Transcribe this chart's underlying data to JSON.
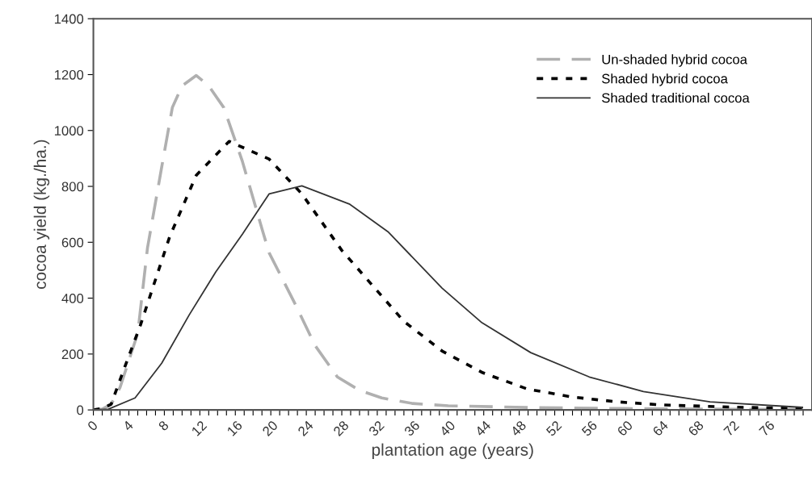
{
  "chart_data": {
    "type": "line",
    "xlabel": "plantation age (years)",
    "ylabel": "cocoa yield (kg./ha.)",
    "xlim": [
      0,
      81
    ],
    "ylim": [
      0,
      1400
    ],
    "yticks": [
      0,
      200,
      400,
      600,
      800,
      1000,
      1200,
      1400
    ],
    "xticks": [
      0,
      {
        "value": 1,
        "label": null
      },
      {
        "value": 2,
        "label": null
      },
      {
        "value": 3,
        "label": null
      },
      4,
      {
        "value": 5,
        "label": null
      },
      {
        "value": 6,
        "label": null
      },
      {
        "value": 7,
        "label": null
      },
      8,
      {
        "value": 9,
        "label": null
      },
      {
        "value": 10,
        "label": null
      },
      {
        "value": 11,
        "label": null
      },
      12,
      {
        "value": 13,
        "label": null
      },
      {
        "value": 14,
        "label": null
      },
      {
        "value": 15,
        "label": null
      },
      16,
      {
        "value": 17,
        "label": null
      },
      {
        "value": 18,
        "label": null
      },
      {
        "value": 19,
        "label": null
      },
      20,
      {
        "value": 21,
        "label": null
      },
      {
        "value": 22,
        "label": null
      },
      {
        "value": 23,
        "label": null
      },
      24,
      {
        "value": 25,
        "label": null
      },
      {
        "value": 26,
        "label": null
      },
      {
        "value": 27,
        "label": null
      },
      28,
      {
        "value": 29,
        "label": null
      },
      {
        "value": 30,
        "label": null
      },
      {
        "value": 31,
        "label": null
      },
      32,
      {
        "value": 33,
        "label": null
      },
      {
        "value": 34,
        "label": null
      },
      {
        "value": 35,
        "label": null
      },
      36,
      {
        "value": 37,
        "label": null
      },
      {
        "value": 38,
        "label": null
      },
      {
        "value": 39,
        "label": null
      },
      40,
      {
        "value": 41,
        "label": null
      },
      {
        "value": 42,
        "label": null
      },
      {
        "value": 43,
        "label": null
      },
      44,
      {
        "value": 45,
        "label": null
      },
      {
        "value": 46,
        "label": null
      },
      {
        "value": 47,
        "label": null
      },
      48,
      {
        "value": 49,
        "label": null
      },
      {
        "value": 50,
        "label": null
      },
      {
        "value": 51,
        "label": null
      },
      52,
      {
        "value": 53,
        "label": null
      },
      {
        "value": 54,
        "label": null
      },
      {
        "value": 55,
        "label": null
      },
      56,
      {
        "value": 57,
        "label": null
      },
      {
        "value": 58,
        "label": null
      },
      {
        "value": 59,
        "label": null
      },
      60,
      {
        "value": 61,
        "label": null
      },
      {
        "value": 62,
        "label": null
      },
      {
        "value": 63,
        "label": null
      },
      64,
      {
        "value": 65,
        "label": null
      },
      {
        "value": 66,
        "label": null
      },
      {
        "value": 67,
        "label": null
      },
      68,
      {
        "value": 69,
        "label": null
      },
      {
        "value": 70,
        "label": null
      },
      {
        "value": 71,
        "label": null
      },
      72,
      {
        "value": 73,
        "label": null
      },
      {
        "value": 74,
        "label": null
      },
      {
        "value": 75,
        "label": null
      },
      76,
      {
        "value": 77,
        "label": null
      },
      {
        "value": 78,
        "label": null
      },
      {
        "value": 79,
        "label": null
      },
      {
        "value": 80,
        "label": null
      }
    ],
    "legend": "top right",
    "grid": false,
    "marker": "none",
    "series": [
      {
        "name": "Un-shaded hybrid cocoa",
        "color": "#b0b0b0",
        "line_style": "dashed",
        "x": [
          0,
          1,
          2,
          3,
          5,
          6.1,
          7.7,
          8.9,
          10,
          11.6,
          13,
          14.7,
          16.8,
          19.1,
          19.8,
          22.9,
          25,
          27.5,
          30,
          32.5,
          36,
          40,
          50,
          60,
          70,
          80
        ],
        "values": [
          0,
          3,
          20,
          80,
          274,
          580,
          869,
          1082,
          1160,
          1197,
          1160,
          1082,
          889,
          638,
          563,
          369,
          230,
          118,
          70,
          43,
          23,
          15,
          8,
          5,
          3,
          2
        ]
      },
      {
        "name": "Shaded hybrid cocoa",
        "color": "#000000",
        "line_style": "dashed",
        "x": [
          0,
          1,
          2,
          3.6,
          5.3,
          8.6,
          11.6,
          15.3,
          19.8,
          23.5,
          28,
          35,
          39.3,
          43.9,
          48.9,
          54,
          59,
          64,
          72,
          80
        ],
        "values": [
          0,
          5,
          20,
          159,
          303,
          620,
          840,
          961,
          898,
          773,
          571,
          317,
          211,
          133,
          75,
          46,
          29,
          18,
          10,
          5
        ]
      },
      {
        "name": "Shaded traditional cocoa",
        "color": "#333333",
        "line_style": "solid",
        "x": [
          0,
          1.7,
          4.7,
          7.7,
          10.8,
          13.8,
          16.8,
          19.8,
          23.5,
          28.9,
          33.2,
          39.3,
          43.8,
          49.3,
          55.9,
          62,
          69.5,
          80
        ],
        "values": [
          0,
          3,
          43,
          167,
          340,
          494,
          629,
          773,
          802,
          736,
          638,
          436,
          312,
          205,
          118,
          66,
          29,
          9
        ]
      }
    ]
  }
}
